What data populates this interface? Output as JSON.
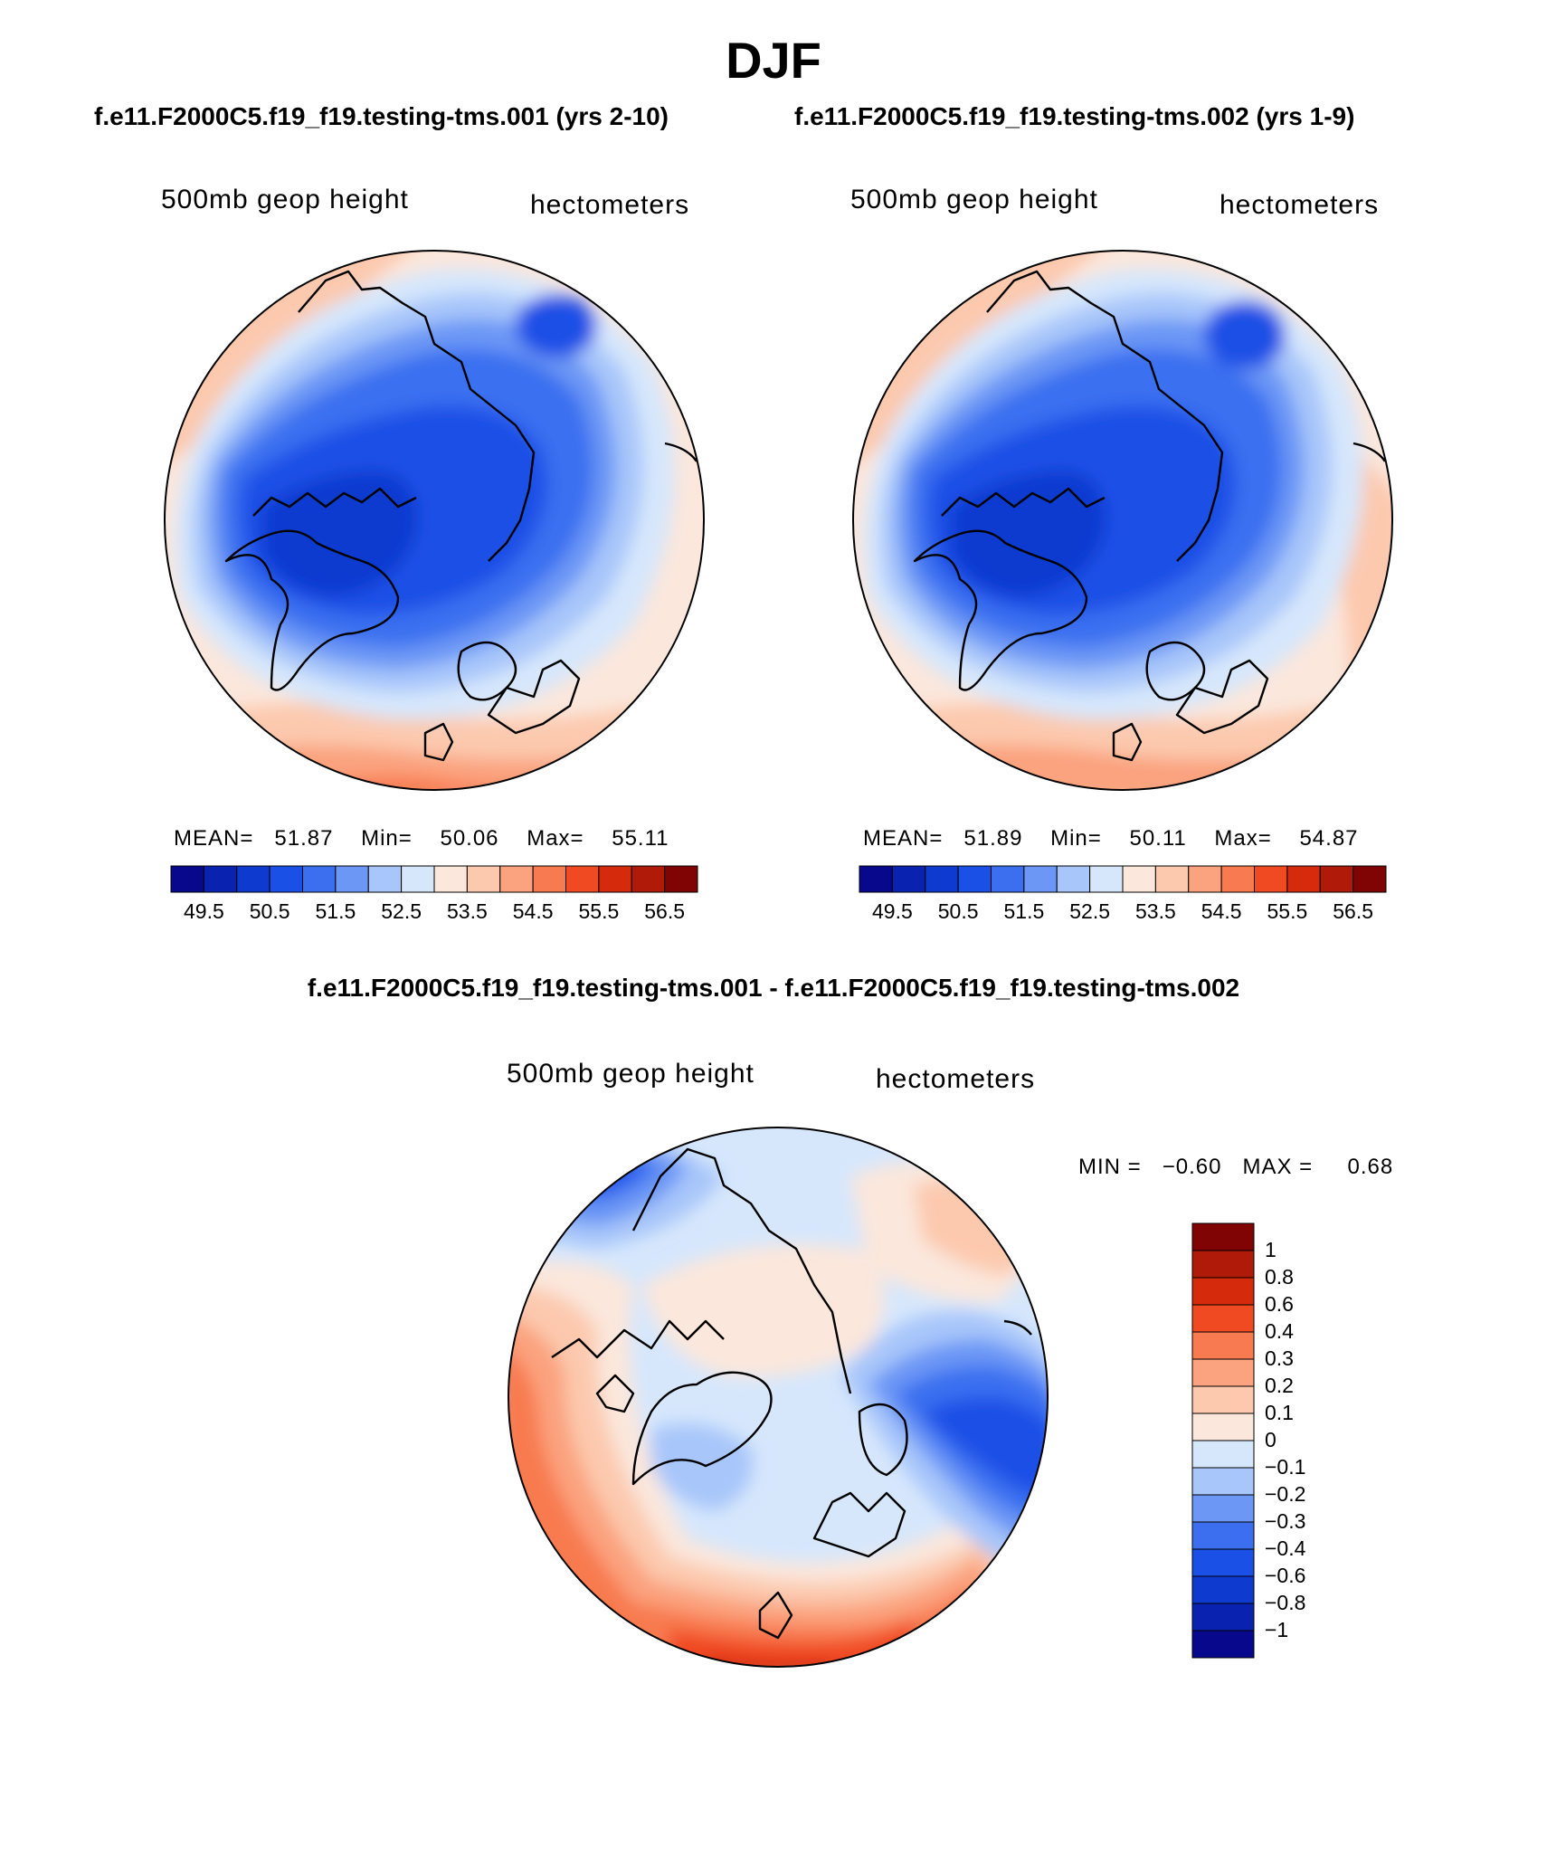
{
  "title": "DJF",
  "case1_title": "f.e11.F2000C5.f19_f19.testing-tms.001 (yrs 2-10)",
  "case2_title": "f.e11.F2000C5.f19_f19.testing-tms.002 (yrs 1-9)",
  "diff_title": "f.e11.F2000C5.f19_f19.testing-tms.001 - f.e11.F2000C5.f19_f19.testing-tms.002",
  "panels": [
    {
      "variable": "500mb geop height",
      "units": "hectometers",
      "mean_label": "MEAN=",
      "mean": "51.87",
      "min_label": "Min=",
      "min": "50.06",
      "max_label": "Max=",
      "max": "55.11"
    },
    {
      "variable": "500mb geop height",
      "units": "hectometers",
      "mean_label": "MEAN=",
      "mean": "51.89",
      "min_label": "Min=",
      "min": "50.11",
      "max_label": "Max=",
      "max": "54.87"
    },
    {
      "variable": "500mb geop height",
      "units": "hectometers",
      "min_label": "MIN =",
      "min": "−0.60",
      "max_label": "MAX =",
      "max": "0.68"
    }
  ],
  "colorbar_abs": {
    "labels": [
      "49.5",
      "50.5",
      "51.5",
      "52.5",
      "53.5",
      "54.5",
      "55.5",
      "56.5"
    ],
    "colors": [
      "#08088c",
      "#0a22b0",
      "#0e3ad0",
      "#1a50e6",
      "#3b6ff0",
      "#6c97f5",
      "#a8c6fa",
      "#d6e7fc",
      "#fbe7dc",
      "#fcc9ae",
      "#fba27e",
      "#f87a50",
      "#f04a22",
      "#d52a0c",
      "#b01a08",
      "#800404"
    ]
  },
  "colorbar_diff": {
    "labels": [
      "1",
      "0.8",
      "0.6",
      "0.4",
      "0.3",
      "0.2",
      "0.1",
      "0",
      "−0.1",
      "−0.2",
      "−0.3",
      "−0.4",
      "−0.6",
      "−0.8",
      "−1"
    ],
    "colors": [
      "#800404",
      "#b01a08",
      "#d52a0c",
      "#f04a22",
      "#f87a50",
      "#fba27e",
      "#fcc9ae",
      "#fbe7dc",
      "#d6e7fc",
      "#a8c6fa",
      "#6c97f5",
      "#3b6ff0",
      "#1a50e6",
      "#0e3ad0",
      "#0a22b0",
      "#08088c"
    ]
  },
  "chart_data": {
    "type": "heatmap",
    "title": "DJF",
    "projection": "north polar stereographic",
    "panels": [
      {
        "name": "case 1",
        "mean": 51.87,
        "min": 50.06,
        "max": 55.11,
        "contour_levels": [
          49.5,
          50,
          50.5,
          51,
          51.5,
          52,
          52.5,
          53,
          53.5,
          54,
          54.5,
          55,
          55.5,
          56,
          56.5
        ]
      },
      {
        "name": "case 2",
        "mean": 51.89,
        "min": 50.11,
        "max": 54.87,
        "contour_levels": [
          49.5,
          50,
          50.5,
          51,
          51.5,
          52,
          52.5,
          53,
          53.5,
          54,
          54.5,
          55,
          55.5,
          56,
          56.5
        ]
      },
      {
        "name": "difference",
        "min": -0.6,
        "max": 0.68,
        "contour_levels": [
          -1,
          -0.8,
          -0.6,
          -0.4,
          -0.3,
          -0.2,
          -0.1,
          0,
          0.1,
          0.2,
          0.3,
          0.4,
          0.6,
          0.8,
          1
        ]
      }
    ]
  }
}
